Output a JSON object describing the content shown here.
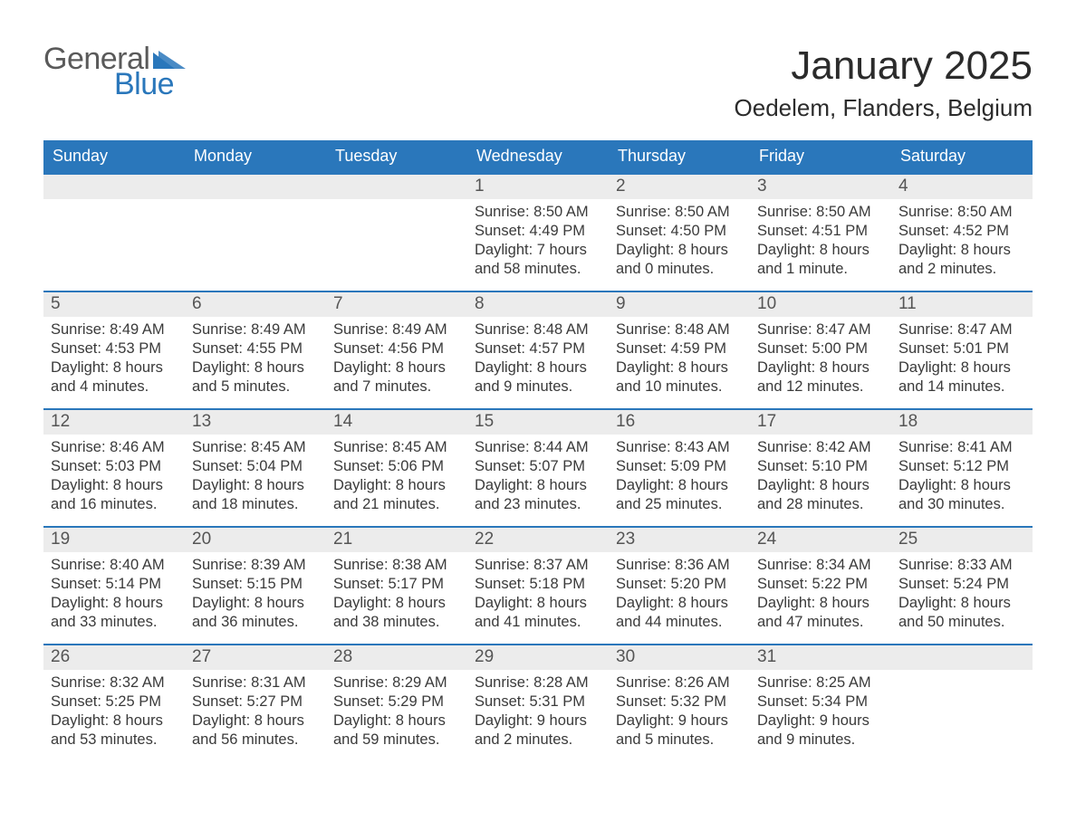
{
  "logo": {
    "word1": "General",
    "word2": "Blue",
    "color_gray": "#5a5a5a",
    "color_blue": "#2a77bb"
  },
  "title": "January 2025",
  "location": "Oedelem, Flanders, Belgium",
  "weekday_header_bg": "#2a77bb",
  "weekday_header_fg": "#ffffff",
  "daynum_bg": "#ececec",
  "row_border_color": "#2a77bb",
  "weekdays": [
    "Sunday",
    "Monday",
    "Tuesday",
    "Wednesday",
    "Thursday",
    "Friday",
    "Saturday"
  ],
  "weeks": [
    [
      null,
      null,
      null,
      {
        "n": "1",
        "sunrise": "8:50 AM",
        "sunset": "4:49 PM",
        "daylight": "7 hours and 58 minutes."
      },
      {
        "n": "2",
        "sunrise": "8:50 AM",
        "sunset": "4:50 PM",
        "daylight": "8 hours and 0 minutes."
      },
      {
        "n": "3",
        "sunrise": "8:50 AM",
        "sunset": "4:51 PM",
        "daylight": "8 hours and 1 minute."
      },
      {
        "n": "4",
        "sunrise": "8:50 AM",
        "sunset": "4:52 PM",
        "daylight": "8 hours and 2 minutes."
      }
    ],
    [
      {
        "n": "5",
        "sunrise": "8:49 AM",
        "sunset": "4:53 PM",
        "daylight": "8 hours and 4 minutes."
      },
      {
        "n": "6",
        "sunrise": "8:49 AM",
        "sunset": "4:55 PM",
        "daylight": "8 hours and 5 minutes."
      },
      {
        "n": "7",
        "sunrise": "8:49 AM",
        "sunset": "4:56 PM",
        "daylight": "8 hours and 7 minutes."
      },
      {
        "n": "8",
        "sunrise": "8:48 AM",
        "sunset": "4:57 PM",
        "daylight": "8 hours and 9 minutes."
      },
      {
        "n": "9",
        "sunrise": "8:48 AM",
        "sunset": "4:59 PM",
        "daylight": "8 hours and 10 minutes."
      },
      {
        "n": "10",
        "sunrise": "8:47 AM",
        "sunset": "5:00 PM",
        "daylight": "8 hours and 12 minutes."
      },
      {
        "n": "11",
        "sunrise": "8:47 AM",
        "sunset": "5:01 PM",
        "daylight": "8 hours and 14 minutes."
      }
    ],
    [
      {
        "n": "12",
        "sunrise": "8:46 AM",
        "sunset": "5:03 PM",
        "daylight": "8 hours and 16 minutes."
      },
      {
        "n": "13",
        "sunrise": "8:45 AM",
        "sunset": "5:04 PM",
        "daylight": "8 hours and 18 minutes."
      },
      {
        "n": "14",
        "sunrise": "8:45 AM",
        "sunset": "5:06 PM",
        "daylight": "8 hours and 21 minutes."
      },
      {
        "n": "15",
        "sunrise": "8:44 AM",
        "sunset": "5:07 PM",
        "daylight": "8 hours and 23 minutes."
      },
      {
        "n": "16",
        "sunrise": "8:43 AM",
        "sunset": "5:09 PM",
        "daylight": "8 hours and 25 minutes."
      },
      {
        "n": "17",
        "sunrise": "8:42 AM",
        "sunset": "5:10 PM",
        "daylight": "8 hours and 28 minutes."
      },
      {
        "n": "18",
        "sunrise": "8:41 AM",
        "sunset": "5:12 PM",
        "daylight": "8 hours and 30 minutes."
      }
    ],
    [
      {
        "n": "19",
        "sunrise": "8:40 AM",
        "sunset": "5:14 PM",
        "daylight": "8 hours and 33 minutes."
      },
      {
        "n": "20",
        "sunrise": "8:39 AM",
        "sunset": "5:15 PM",
        "daylight": "8 hours and 36 minutes."
      },
      {
        "n": "21",
        "sunrise": "8:38 AM",
        "sunset": "5:17 PM",
        "daylight": "8 hours and 38 minutes."
      },
      {
        "n": "22",
        "sunrise": "8:37 AM",
        "sunset": "5:18 PM",
        "daylight": "8 hours and 41 minutes."
      },
      {
        "n": "23",
        "sunrise": "8:36 AM",
        "sunset": "5:20 PM",
        "daylight": "8 hours and 44 minutes."
      },
      {
        "n": "24",
        "sunrise": "8:34 AM",
        "sunset": "5:22 PM",
        "daylight": "8 hours and 47 minutes."
      },
      {
        "n": "25",
        "sunrise": "8:33 AM",
        "sunset": "5:24 PM",
        "daylight": "8 hours and 50 minutes."
      }
    ],
    [
      {
        "n": "26",
        "sunrise": "8:32 AM",
        "sunset": "5:25 PM",
        "daylight": "8 hours and 53 minutes."
      },
      {
        "n": "27",
        "sunrise": "8:31 AM",
        "sunset": "5:27 PM",
        "daylight": "8 hours and 56 minutes."
      },
      {
        "n": "28",
        "sunrise": "8:29 AM",
        "sunset": "5:29 PM",
        "daylight": "8 hours and 59 minutes."
      },
      {
        "n": "29",
        "sunrise": "8:28 AM",
        "sunset": "5:31 PM",
        "daylight": "9 hours and 2 minutes."
      },
      {
        "n": "30",
        "sunrise": "8:26 AM",
        "sunset": "5:32 PM",
        "daylight": "9 hours and 5 minutes."
      },
      {
        "n": "31",
        "sunrise": "8:25 AM",
        "sunset": "5:34 PM",
        "daylight": "9 hours and 9 minutes."
      },
      null
    ]
  ],
  "labels": {
    "sunrise": "Sunrise:",
    "sunset": "Sunset:",
    "daylight": "Daylight:"
  }
}
